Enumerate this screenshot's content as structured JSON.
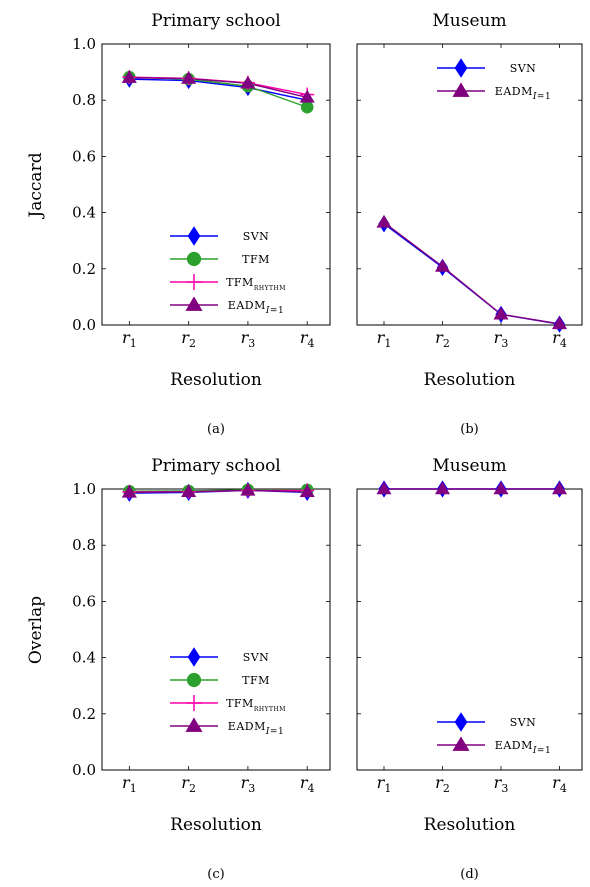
{
  "y_axis_labels": [
    "Jaccard",
    "Overlap"
  ],
  "chart_data": [
    {
      "type": "line",
      "title": "Primary school",
      "xlabel": "Resolution",
      "ylabel": "Jaccard",
      "caption": "(a)",
      "categories": [
        "r1",
        "r2",
        "r3",
        "r4"
      ],
      "ylim": [
        0,
        1
      ],
      "yticks": [
        "0.0",
        "0.2",
        "0.4",
        "0.6",
        "0.8",
        "1.0"
      ],
      "show_yticklabels": true,
      "legend_position": "lower-right",
      "series": [
        {
          "name": "SVN",
          "values": [
            0.875,
            0.87,
            0.845,
            0.8
          ],
          "color": "#0000ff",
          "marker": "diamond"
        },
        {
          "name": "TFM",
          "values": [
            0.882,
            0.875,
            0.85,
            0.775
          ],
          "color": "#2ca02c",
          "marker": "circle"
        },
        {
          "name": "TFM_rhythm",
          "values": [
            0.882,
            0.878,
            0.862,
            0.82
          ],
          "color": "#ff00aa",
          "marker": "plus"
        },
        {
          "name": "EADM_I=1",
          "values": [
            0.88,
            0.877,
            0.86,
            0.81
          ],
          "color": "#800080",
          "marker": "triangle"
        }
      ]
    },
    {
      "type": "line",
      "title": "Museum",
      "xlabel": "Resolution",
      "ylabel": "",
      "caption": "(b)",
      "categories": [
        "r1",
        "r2",
        "r3",
        "r4"
      ],
      "ylim": [
        0,
        1
      ],
      "yticks": [
        "0.0",
        "0.2",
        "0.4",
        "0.6",
        "0.8",
        "1.0"
      ],
      "show_yticklabels": false,
      "legend_position": "top-right",
      "series": [
        {
          "name": "SVN",
          "values": [
            0.36,
            0.205,
            0.038,
            0.003
          ],
          "color": "#0000ff",
          "marker": "diamond"
        },
        {
          "name": "EADM_I=1",
          "values": [
            0.365,
            0.208,
            0.038,
            0.004
          ],
          "color": "#800080",
          "marker": "triangle"
        }
      ]
    },
    {
      "type": "line",
      "title": "Primary school",
      "xlabel": "Resolution",
      "ylabel": "Overlap",
      "caption": "(c)",
      "categories": [
        "r1",
        "r2",
        "r3",
        "r4"
      ],
      "ylim": [
        0,
        1
      ],
      "yticks": [
        "0.0",
        "0.2",
        "0.4",
        "0.6",
        "0.8",
        "1.0"
      ],
      "show_yticklabels": true,
      "legend_position": "lower-right",
      "series": [
        {
          "name": "SVN",
          "values": [
            0.985,
            0.988,
            0.995,
            0.988
          ],
          "color": "#0000ff",
          "marker": "diamond"
        },
        {
          "name": "TFM",
          "values": [
            0.992,
            0.993,
            0.997,
            0.997
          ],
          "color": "#2ca02c",
          "marker": "circle"
        },
        {
          "name": "TFM_rhythm",
          "values": [
            0.99,
            0.99,
            0.995,
            0.995
          ],
          "color": "#ff00aa",
          "marker": "plus"
        },
        {
          "name": "EADM_I=1",
          "values": [
            0.988,
            0.99,
            0.995,
            0.99
          ],
          "color": "#800080",
          "marker": "triangle"
        }
      ]
    },
    {
      "type": "line",
      "title": "Museum",
      "xlabel": "Resolution",
      "ylabel": "",
      "caption": "(d)",
      "categories": [
        "r1",
        "r2",
        "r3",
        "r4"
      ],
      "ylim": [
        0,
        1
      ],
      "yticks": [
        "0.0",
        "0.2",
        "0.4",
        "0.6",
        "0.8",
        "1.0"
      ],
      "show_yticklabels": false,
      "legend_position": "lower-right",
      "series": [
        {
          "name": "SVN",
          "values": [
            1.0,
            1.0,
            1.0,
            1.0
          ],
          "color": "#0000ff",
          "marker": "diamond"
        },
        {
          "name": "EADM_I=1",
          "values": [
            1.0,
            1.0,
            1.0,
            1.0
          ],
          "color": "#800080",
          "marker": "triangle"
        }
      ]
    }
  ]
}
